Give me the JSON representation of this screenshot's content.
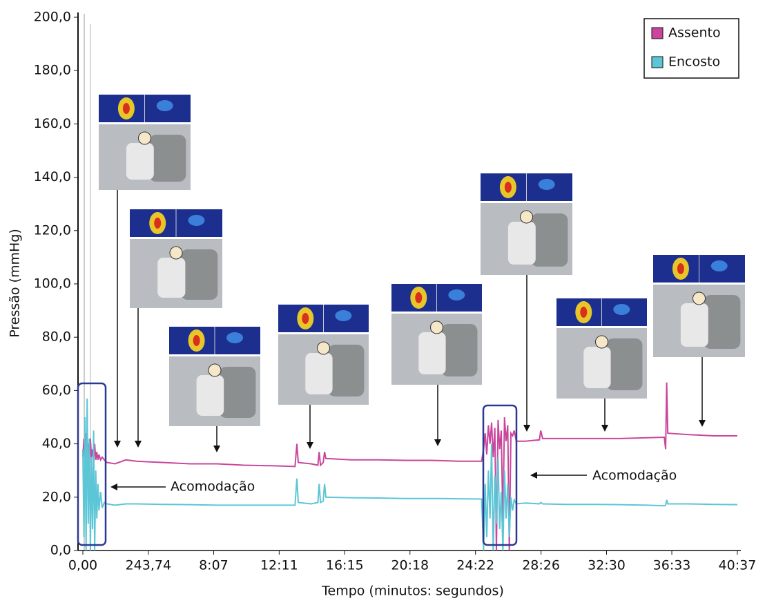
{
  "chart_data": {
    "type": "line",
    "xlabel": "Tempo (minutos: segundos)",
    "ylabel": "Pressão (mmHg)",
    "x": [
      0,
      4,
      8,
      12,
      16,
      20,
      24,
      28,
      32,
      36,
      40,
      44,
      48,
      52,
      56,
      60,
      66,
      72,
      80,
      90,
      120,
      160,
      200,
      300,
      400,
      500,
      600,
      700,
      790,
      797,
      802,
      850,
      875,
      880,
      885,
      895,
      900,
      905,
      1000,
      1100,
      1200,
      1300,
      1400,
      1485,
      1492,
      1498,
      1504,
      1510,
      1516,
      1522,
      1528,
      1534,
      1540,
      1546,
      1552,
      1558,
      1564,
      1570,
      1576,
      1582,
      1588,
      1594,
      1600,
      1606,
      1614,
      1650,
      1700,
      1705,
      1712,
      1800,
      1900,
      2000,
      2100,
      2165,
      2170,
      2174,
      2178,
      2250,
      2350,
      2437
    ],
    "series": [
      {
        "name": "Assento",
        "color": "#c9469c",
        "values": [
          35,
          42,
          30,
          44,
          33,
          40,
          31,
          42,
          35,
          38,
          33,
          40,
          34,
          37,
          34,
          36,
          34,
          35,
          34,
          33,
          32.5,
          34,
          33.5,
          33,
          32.5,
          32.5,
          32,
          31.8,
          31.5,
          40,
          33,
          32.5,
          32,
          37,
          32,
          33,
          37,
          34.5,
          34,
          34,
          33.8,
          33.8,
          33.5,
          33.5,
          38,
          44,
          36,
          47,
          40,
          48,
          35,
          46,
          0,
          49,
          38,
          45,
          10,
          50,
          41,
          47,
          0,
          44,
          43,
          45,
          41,
          41,
          41.5,
          45,
          42,
          42,
          42,
          42,
          42.3,
          42.5,
          38,
          63,
          44,
          43.5,
          43,
          43
        ]
      },
      {
        "name": "Encosto",
        "color": "#5cc6d6",
        "values": [
          38,
          5,
          50,
          0,
          57,
          10,
          42,
          0,
          35,
          8,
          45,
          0,
          30,
          12,
          25,
          15,
          22,
          16,
          18,
          17.5,
          17,
          17.5,
          17.5,
          17.3,
          17.2,
          17,
          17,
          17,
          17,
          27,
          18,
          17.5,
          18,
          25,
          18,
          18.5,
          25,
          20,
          19.8,
          19.7,
          19.5,
          19.5,
          19.4,
          19.3,
          0,
          25,
          5,
          30,
          12,
          40,
          0,
          28,
          10,
          35,
          8,
          22,
          0,
          30,
          12,
          25,
          5,
          20,
          15,
          19,
          17.5,
          17.8,
          17.5,
          18,
          17.5,
          17.3,
          17.3,
          17.2,
          17,
          16.8,
          17,
          19,
          17.5,
          17.5,
          17.3,
          17.2
        ]
      }
    ],
    "xlim": [
      -18,
      2450
    ],
    "xticks": [
      {
        "value": 0,
        "label": "0,00"
      },
      {
        "value": 243.74,
        "label": "243,74"
      },
      {
        "value": 487,
        "label": "8:07"
      },
      {
        "value": 731,
        "label": "12:11"
      },
      {
        "value": 975,
        "label": "16:15"
      },
      {
        "value": 1218,
        "label": "20:18"
      },
      {
        "value": 1462,
        "label": "24:22"
      },
      {
        "value": 1706,
        "label": "28:26"
      },
      {
        "value": 1950,
        "label": "32:30"
      },
      {
        "value": 2193,
        "label": "36:33"
      },
      {
        "value": 2437,
        "label": "40:37"
      }
    ],
    "ylim": [
      0,
      200
    ],
    "yticks": [
      {
        "value": 0,
        "label": "0,0"
      },
      {
        "value": 20,
        "label": "20,0"
      },
      {
        "value": 40,
        "label": "40,0"
      },
      {
        "value": 60,
        "label": "60,0"
      },
      {
        "value": 80,
        "label": "80,0"
      },
      {
        "value": 100,
        "label": "100,0"
      },
      {
        "value": 120,
        "label": "120,0"
      },
      {
        "value": 140,
        "label": "140,0"
      },
      {
        "value": 160,
        "label": "160,0"
      },
      {
        "value": 180,
        "label": "180,0"
      },
      {
        "value": 200,
        "label": "200,0"
      }
    ],
    "annotations": [
      "Acomodação",
      "Acomodação"
    ],
    "legend": "upper right"
  }
}
